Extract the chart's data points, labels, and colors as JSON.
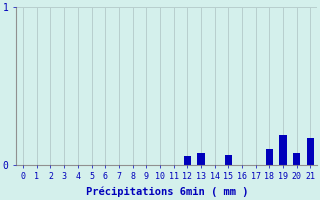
{
  "x_values": [
    0,
    1,
    2,
    3,
    4,
    5,
    6,
    7,
    8,
    9,
    10,
    11,
    12,
    13,
    14,
    15,
    16,
    17,
    18,
    19,
    20,
    21
  ],
  "y_values": [
    0,
    0,
    0,
    0,
    0,
    0,
    0,
    0,
    0,
    0,
    0,
    0,
    0.055,
    0.07,
    0,
    0.06,
    0,
    0,
    0.1,
    0.19,
    0.075,
    0.17
  ],
  "xlim": [
    -0.5,
    21.5
  ],
  "ylim": [
    0,
    1.0
  ],
  "yticks": [
    0,
    1
  ],
  "ytick_labels": [
    "0",
    "1"
  ],
  "xticks": [
    0,
    1,
    2,
    3,
    4,
    5,
    6,
    7,
    8,
    9,
    10,
    11,
    12,
    13,
    14,
    15,
    16,
    17,
    18,
    19,
    20,
    21
  ],
  "xlabel": "Précipitations 6min ( mm )",
  "bar_color": "#0000bb",
  "bg_color": "#d4f0ec",
  "grid_color": "#b8cece",
  "axis_color": "#909090",
  "text_color": "#0000bb",
  "bar_width": 0.55,
  "tick_fontsize": 6.0,
  "xlabel_fontsize": 7.5
}
